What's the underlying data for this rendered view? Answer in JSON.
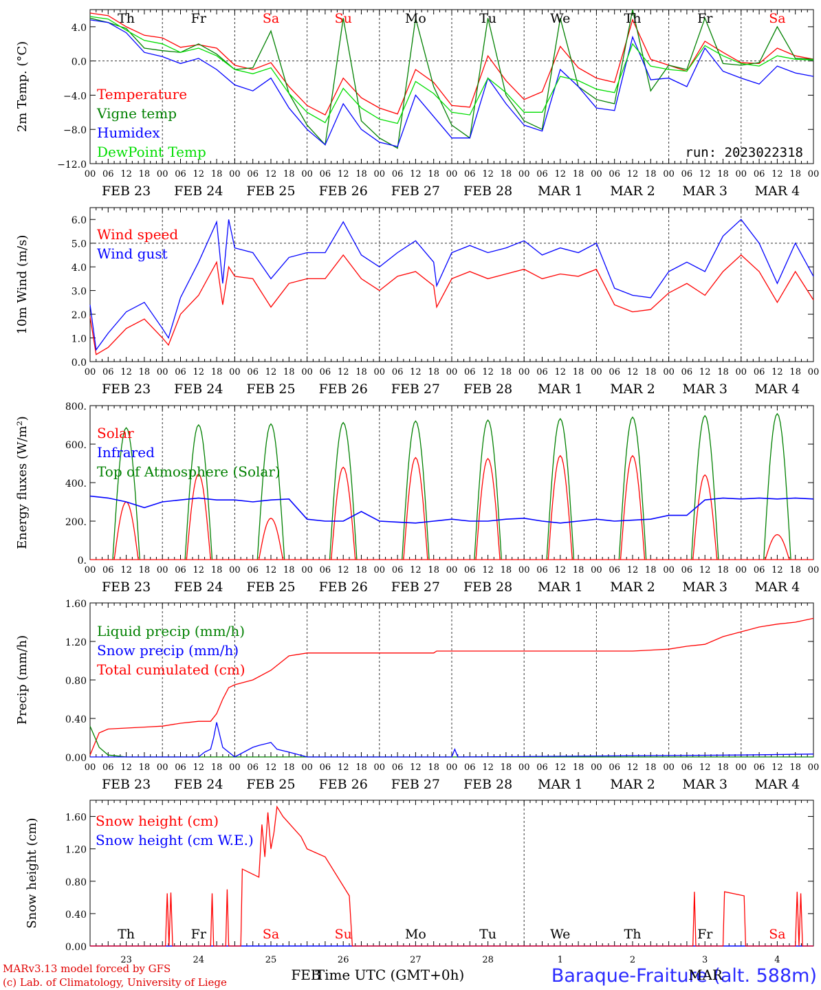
{
  "run_label": "run: 2023022318",
  "footer": {
    "model": "MARv3.13 model forced by GFS",
    "lab": "(c) Lab. of Climatology, University of Liege",
    "xtitle": "Time UTC (GMT+0h)",
    "station": "Baraque-Fraiture (alt. 588m)",
    "month_left": "FEB",
    "month_right": "MAR"
  },
  "colors": {
    "red": "#ff0000",
    "green": "#008000",
    "blue": "#0000ff",
    "lightgreen": "#00dd00",
    "gray": "#444444"
  },
  "chart_data": [
    {
      "type": "line",
      "ylabel": "2m Temp. (°C)",
      "ylim": [
        -12,
        6
      ],
      "yticks": [
        -12,
        -8,
        -4,
        0,
        4
      ],
      "ytick_labels": [
        "−12.0",
        "−8.0",
        "−4.0",
        "0.0",
        "4.0"
      ],
      "reference_line": 0,
      "x_hours": [
        0,
        240
      ],
      "hour_ticks": [
        "00",
        "06",
        "12",
        "18"
      ],
      "date_labels": [
        "FEB 23",
        "FEB 24",
        "FEB 25",
        "FEB 26",
        "FEB 27",
        "FEB 28",
        "MAR 1",
        "MAR 2",
        "MAR 3",
        "MAR 4"
      ],
      "day_names": [
        "Th",
        "Fr",
        "Sa",
        "Su",
        "Mo",
        "Tu",
        "We",
        "Th",
        "Fr",
        "Sa"
      ],
      "weekend_red": [
        2,
        3,
        9
      ],
      "legend": [
        {
          "label": "Temperature",
          "color": "#ff0000"
        },
        {
          "label": "Vigne temp",
          "color": "#008000"
        },
        {
          "label": "Humidex",
          "color": "#0000ff"
        },
        {
          "label": "DewPoint Temp",
          "color": "#00dd00"
        }
      ],
      "series": [
        {
          "name": "Temperature",
          "color": "#ff0000",
          "x": [
            0,
            6,
            12,
            18,
            24,
            30,
            36,
            42,
            48,
            54,
            60,
            66,
            72,
            78,
            84,
            90,
            96,
            102,
            108,
            114,
            120,
            126,
            132,
            138,
            144,
            150,
            156,
            162,
            168,
            174,
            180,
            186,
            192,
            198,
            204,
            210,
            216,
            222,
            228,
            234,
            240
          ],
          "y": [
            5.6,
            5.3,
            4.0,
            3.0,
            2.7,
            1.6,
            1.9,
            1.5,
            -0.5,
            -1.0,
            -0.2,
            -3.0,
            -5.2,
            -6.3,
            -2.0,
            -4.3,
            -5.5,
            -6.2,
            -1.0,
            -2.5,
            -5.2,
            -5.4,
            0.6,
            -2.3,
            -4.5,
            -3.6,
            1.7,
            -0.8,
            -2.0,
            -2.5,
            4.8,
            0.2,
            -0.5,
            -1.2,
            2.3,
            1.0,
            -0.2,
            -0.3,
            1.5,
            0.6,
            0.2
          ]
        },
        {
          "name": "Vigne temp",
          "color": "#008000",
          "x": [
            0,
            6,
            12,
            18,
            24,
            30,
            36,
            42,
            48,
            54,
            60,
            66,
            72,
            78,
            84,
            90,
            96,
            102,
            108,
            114,
            120,
            126,
            132,
            138,
            144,
            150,
            156,
            162,
            168,
            174,
            180,
            186,
            192,
            198,
            204,
            210,
            216,
            222,
            228,
            234,
            240
          ],
          "y": [
            5.0,
            4.5,
            3.8,
            1.5,
            1.2,
            1.0,
            2.0,
            0.8,
            -1.0,
            -0.8,
            3.5,
            -3.8,
            -7.5,
            -9.8,
            5.0,
            -7.0,
            -9.0,
            -10.2,
            5.0,
            -3.0,
            -7.5,
            -9.0,
            5.0,
            -4.0,
            -7.0,
            -8.0,
            5.0,
            -3.0,
            -4.5,
            -5.0,
            6.0,
            -3.5,
            -0.5,
            -1.0,
            5.0,
            -0.3,
            -0.5,
            -0.2,
            4.0,
            0.3,
            0.2
          ]
        },
        {
          "name": "Humidex",
          "color": "#0000ff",
          "x": [
            0,
            6,
            12,
            18,
            24,
            30,
            36,
            42,
            48,
            54,
            60,
            66,
            72,
            78,
            84,
            90,
            96,
            102,
            108,
            114,
            120,
            126,
            132,
            138,
            144,
            150,
            156,
            162,
            168,
            174,
            180,
            186,
            192,
            198,
            204,
            210,
            216,
            222,
            228,
            234,
            240
          ],
          "y": [
            4.8,
            4.5,
            3.3,
            1.0,
            0.5,
            -0.3,
            0.3,
            -1.0,
            -2.8,
            -3.5,
            -2.0,
            -5.5,
            -8.0,
            -9.8,
            -5.0,
            -8.0,
            -9.5,
            -10.0,
            -4.0,
            -6.5,
            -9.0,
            -9.0,
            -2.0,
            -5.0,
            -7.5,
            -8.2,
            -1.0,
            -3.0,
            -5.5,
            -5.8,
            2.8,
            -2.2,
            -2.0,
            -3.0,
            1.5,
            -1.2,
            -2.0,
            -2.7,
            -0.6,
            -1.4,
            -1.8
          ]
        },
        {
          "name": "DewPoint Temp",
          "color": "#00dd00",
          "x": [
            0,
            6,
            12,
            18,
            24,
            30,
            36,
            42,
            48,
            54,
            60,
            66,
            72,
            78,
            84,
            90,
            96,
            102,
            108,
            114,
            120,
            126,
            132,
            138,
            144,
            150,
            156,
            162,
            168,
            174,
            180,
            186,
            192,
            198,
            204,
            210,
            216,
            222,
            228,
            234,
            240
          ],
          "y": [
            5.2,
            4.9,
            3.6,
            2.4,
            2.0,
            1.0,
            1.5,
            0.6,
            -1.0,
            -1.5,
            -0.8,
            -3.8,
            -6.0,
            -7.2,
            -3.2,
            -5.5,
            -6.8,
            -7.3,
            -2.4,
            -3.8,
            -6.0,
            -6.3,
            -2.0,
            -3.7,
            -6.0,
            -6.0,
            -1.8,
            -2.3,
            -3.3,
            -3.7,
            2.0,
            -0.6,
            -1.0,
            -1.2,
            1.8,
            0.6,
            -0.3,
            -0.6,
            0.6,
            0.2,
            0.1
          ]
        }
      ]
    },
    {
      "type": "line",
      "ylabel": "10m Wind (m/s)",
      "ylim": [
        0,
        6.5
      ],
      "yticks": [
        0,
        1,
        2,
        3,
        4,
        5,
        6
      ],
      "ytick_labels": [
        "0.0",
        "1.0",
        "2.0",
        "3.0",
        "4.0",
        "5.0",
        "6.0"
      ],
      "reference_line": 5,
      "legend": [
        {
          "label": "Wind speed",
          "color": "#ff0000"
        },
        {
          "label": "Wind gust",
          "color": "#0000ff"
        }
      ],
      "series": [
        {
          "name": "Wind speed",
          "color": "#ff0000",
          "x": [
            0,
            2,
            6,
            12,
            18,
            24,
            26,
            30,
            36,
            42,
            44,
            46,
            48,
            54,
            60,
            66,
            72,
            78,
            84,
            90,
            96,
            102,
            108,
            114,
            115,
            120,
            126,
            132,
            138,
            144,
            150,
            156,
            162,
            168,
            174,
            180,
            186,
            192,
            198,
            204,
            210,
            216,
            222,
            228,
            234,
            240
          ],
          "y": [
            1.9,
            0.3,
            0.6,
            1.4,
            1.8,
            1.0,
            0.7,
            2.0,
            2.8,
            4.2,
            2.4,
            4.0,
            3.6,
            3.5,
            2.3,
            3.3,
            3.5,
            3.5,
            4.5,
            3.5,
            3.0,
            3.6,
            3.8,
            3.2,
            2.3,
            3.5,
            3.8,
            3.5,
            3.7,
            3.9,
            3.5,
            3.7,
            3.6,
            3.9,
            2.4,
            2.1,
            2.2,
            2.9,
            3.3,
            2.8,
            3.8,
            4.5,
            3.8,
            2.5,
            3.8,
            2.6
          ]
        },
        {
          "name": "Wind gust",
          "color": "#0000ff",
          "x": [
            0,
            2,
            6,
            12,
            18,
            24,
            26,
            30,
            36,
            42,
            44,
            46,
            48,
            54,
            60,
            66,
            72,
            78,
            84,
            90,
            96,
            102,
            108,
            114,
            115,
            120,
            126,
            132,
            138,
            144,
            150,
            156,
            162,
            168,
            174,
            180,
            186,
            192,
            198,
            204,
            210,
            216,
            222,
            228,
            234,
            240
          ],
          "y": [
            2.4,
            0.5,
            1.2,
            2.1,
            2.5,
            1.4,
            1.0,
            2.7,
            4.2,
            5.9,
            3.3,
            6.0,
            4.8,
            4.6,
            3.5,
            4.4,
            4.6,
            4.6,
            5.9,
            4.5,
            4.0,
            4.6,
            5.1,
            4.2,
            3.2,
            4.6,
            4.9,
            4.6,
            4.8,
            5.1,
            4.5,
            4.8,
            4.6,
            5.0,
            3.1,
            2.8,
            2.7,
            3.8,
            4.2,
            3.8,
            5.3,
            6.0,
            5.0,
            3.3,
            5.0,
            3.6
          ]
        }
      ]
    },
    {
      "type": "line",
      "ylabel": "Energy fluxes (W/m²)",
      "ylim": [
        0,
        800
      ],
      "yticks": [
        0,
        200,
        400,
        600,
        800
      ],
      "ytick_labels": [
        "0.",
        "200.",
        "400.",
        "600.",
        "800."
      ],
      "legend": [
        {
          "label": "Solar",
          "color": "#ff0000"
        },
        {
          "label": "Infrared",
          "color": "#0000ff"
        },
        {
          "label": "Top of Atmosphere (Solar)",
          "color": "#008000"
        }
      ],
      "toa_peaks": [
        685,
        700,
        705,
        712,
        720,
        725,
        732,
        740,
        748,
        758
      ],
      "solar_peaks": [
        300,
        445,
        215,
        480,
        530,
        525,
        540,
        540,
        440,
        130
      ],
      "series": [
        {
          "name": "Infrared",
          "color": "#0000ff",
          "x": [
            0,
            6,
            12,
            18,
            24,
            30,
            36,
            42,
            48,
            54,
            60,
            66,
            72,
            78,
            84,
            90,
            96,
            102,
            108,
            114,
            120,
            126,
            132,
            138,
            144,
            150,
            156,
            162,
            168,
            174,
            180,
            186,
            192,
            198,
            204,
            210,
            216,
            222,
            228,
            234,
            240
          ],
          "y": [
            330,
            320,
            300,
            270,
            300,
            310,
            320,
            310,
            310,
            300,
            310,
            315,
            210,
            200,
            200,
            250,
            200,
            195,
            190,
            200,
            210,
            200,
            200,
            210,
            215,
            200,
            190,
            200,
            210,
            200,
            205,
            210,
            230,
            230,
            310,
            320,
            315,
            320,
            315,
            320,
            315
          ]
        }
      ]
    },
    {
      "type": "line",
      "ylabel": "Precip (mm/h)",
      "ylim": [
        0,
        1.6
      ],
      "yticks": [
        0,
        0.4,
        0.8,
        1.2,
        1.6
      ],
      "ytick_labels": [
        "0.00",
        "0.40",
        "0.80",
        "1.20",
        "1.60"
      ],
      "legend": [
        {
          "label": "Liquid precip (mm/h)",
          "color": "#008000"
        },
        {
          "label": "Snow precip (mm/h)",
          "color": "#0000ff"
        },
        {
          "label": "Total cumulated (cm)",
          "color": "#ff0000"
        }
      ],
      "series": [
        {
          "name": "Total cumulated (cm)",
          "color": "#ff0000",
          "x": [
            0,
            3,
            6,
            12,
            18,
            24,
            30,
            36,
            40,
            42,
            44,
            46,
            48,
            54,
            60,
            66,
            72,
            78,
            84,
            96,
            114,
            115,
            120,
            132,
            144,
            156,
            168,
            180,
            186,
            192,
            198,
            204,
            210,
            216,
            222,
            228,
            234,
            240
          ],
          "y": [
            0.02,
            0.25,
            0.29,
            0.3,
            0.31,
            0.32,
            0.35,
            0.37,
            0.37,
            0.45,
            0.6,
            0.72,
            0.75,
            0.8,
            0.9,
            1.05,
            1.08,
            1.08,
            1.08,
            1.08,
            1.08,
            1.1,
            1.1,
            1.1,
            1.1,
            1.1,
            1.1,
            1.1,
            1.11,
            1.12,
            1.15,
            1.17,
            1.25,
            1.3,
            1.35,
            1.38,
            1.4,
            1.44
          ]
        }
      ]
    },
    {
      "type": "line",
      "ylabel": "Snow height (cm)",
      "ylim": [
        0,
        1.8
      ],
      "yticks": [
        0,
        0.4,
        0.8,
        1.2,
        1.6
      ],
      "ytick_labels": [
        "0.00",
        "0.40",
        "0.80",
        "1.20",
        "1.60"
      ],
      "day_names": [
        "Th",
        "Fr",
        "Sa",
        "Su",
        "Mo",
        "Tu",
        "We",
        "Th",
        "Fr",
        "Sa"
      ],
      "day_numbers": [
        "23",
        "24",
        "25",
        "26",
        "27",
        "28",
        "1",
        "2",
        "3",
        "4"
      ],
      "legend": [
        {
          "label": "Snow height (cm)",
          "color": "#ff0000"
        },
        {
          "label": "Snow height (cm W.E.)",
          "color": "#0000ff"
        }
      ],
      "series": [
        {
          "name": "Snow height (cm)",
          "color": "#ff0000",
          "x": [
            0,
            25,
            25.6,
            26.2,
            26.8,
            27.4,
            40,
            40.5,
            41,
            45,
            45.5,
            46,
            50,
            50.5,
            56,
            57,
            58,
            59,
            60,
            61,
            62,
            64,
            70,
            72,
            78,
            86,
            87,
            88,
            140,
            200,
            200.5,
            201,
            210,
            210.5,
            217,
            217.5,
            220,
            234,
            234.6,
            235.2,
            235.8,
            236.4,
            240
          ],
          "y": [
            0,
            0,
            0.65,
            0,
            0.66,
            0,
            0,
            0.65,
            0,
            0,
            0.7,
            0,
            0,
            0.95,
            0.85,
            1.5,
            1.1,
            1.65,
            1.2,
            1.4,
            1.72,
            1.6,
            1.35,
            1.2,
            1.1,
            0.62,
            0,
            0,
            0,
            0,
            0.67,
            0,
            0,
            0.67,
            0.62,
            0,
            0,
            0,
            0.67,
            0,
            0.65,
            0,
            0
          ]
        }
      ]
    }
  ]
}
